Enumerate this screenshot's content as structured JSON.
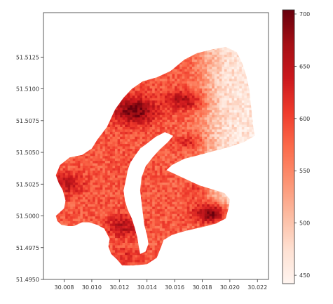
{
  "chart_data": {
    "type": "heatmap",
    "title": "",
    "xlabel": "",
    "ylabel": "",
    "xlim": [
      30.0065,
      30.0228
    ],
    "ylim": [
      51.495,
      51.516
    ],
    "x_ticks": [
      "30.008",
      "30.010",
      "30.012",
      "30.014",
      "30.016",
      "30.018",
      "30.020",
      "30.022"
    ],
    "y_ticks": [
      "51.5125",
      "51.5100",
      "51.5075",
      "51.5050",
      "51.5025",
      "51.5000",
      "51.4975",
      "51.4950"
    ],
    "colormap": "Reds",
    "color_low": "#fff5f0",
    "color_high": "#67000d",
    "colorbar": {
      "range": [
        442,
        704
      ],
      "ticks": [
        "700",
        "650",
        "600",
        "550",
        "500",
        "450"
      ]
    },
    "grid": false,
    "region_outline": [
      [
        30.0093,
        51.4995
      ],
      [
        30.0087,
        51.4992
      ],
      [
        30.0083,
        51.4992
      ],
      [
        30.0078,
        51.4993
      ],
      [
        30.0075,
        51.4996
      ],
      [
        30.0074,
        51.5
      ],
      [
        30.0077,
        51.5003
      ],
      [
        30.008,
        51.5006
      ],
      [
        30.0081,
        51.5012
      ],
      [
        30.0079,
        51.502
      ],
      [
        30.0076,
        51.5026
      ],
      [
        30.0074,
        51.5032
      ],
      [
        30.0077,
        51.504
      ],
      [
        30.0084,
        51.5046
      ],
      [
        30.0093,
        51.5048
      ],
      [
        30.01,
        51.5053
      ],
      [
        30.0104,
        51.506
      ],
      [
        30.0111,
        51.507
      ],
      [
        30.0117,
        51.5084
      ],
      [
        30.0123,
        51.5093
      ],
      [
        30.0129,
        51.51
      ],
      [
        30.0137,
        51.5106
      ],
      [
        30.0147,
        51.5109
      ],
      [
        30.0157,
        51.5114
      ],
      [
        30.0167,
        51.5123
      ],
      [
        30.0176,
        51.5128
      ],
      [
        30.0187,
        51.5131
      ],
      [
        30.0197,
        51.5133
      ],
      [
        30.0205,
        51.5129
      ],
      [
        30.0209,
        51.512
      ],
      [
        30.0212,
        51.511
      ],
      [
        30.0214,
        51.51
      ],
      [
        30.0215,
        51.509
      ],
      [
        30.0216,
        51.508
      ],
      [
        30.0217,
        51.507
      ],
      [
        30.0218,
        51.5063
      ],
      [
        30.021,
        51.5058
      ],
      [
        30.0199,
        51.5054
      ],
      [
        30.0188,
        51.5051
      ],
      [
        30.0178,
        51.5048
      ],
      [
        30.0167,
        51.5045
      ],
      [
        30.0158,
        51.504
      ],
      [
        30.0154,
        51.5036
      ],
      [
        30.016,
        51.5033
      ],
      [
        30.0166,
        51.503
      ],
      [
        30.0172,
        51.5027
      ],
      [
        30.0178,
        51.5024
      ],
      [
        30.0187,
        51.5021
      ],
      [
        30.0196,
        51.5018
      ],
      [
        30.02,
        51.5013
      ],
      [
        30.0199,
        51.5006
      ],
      [
        30.0197,
        51.4998
      ],
      [
        30.019,
        51.4994
      ],
      [
        30.0183,
        51.4992
      ],
      [
        30.0175,
        51.499
      ],
      [
        30.0167,
        51.4988
      ],
      [
        30.0158,
        51.4985
      ],
      [
        30.0152,
        51.4981
      ],
      [
        30.015,
        51.4975
      ],
      [
        30.0147,
        51.4967
      ],
      [
        30.014,
        51.4962
      ],
      [
        30.013,
        51.4961
      ],
      [
        30.0122,
        51.4961
      ],
      [
        30.0118,
        51.4966
      ],
      [
        30.0114,
        51.497
      ],
      [
        30.0112,
        51.4976
      ],
      [
        30.0113,
        51.4982
      ],
      [
        30.0109,
        51.499
      ],
      [
        30.0104,
        51.4993
      ],
      [
        30.0098,
        51.4995
      ]
    ],
    "river_outline": [
      [
        30.0153,
        51.5066
      ],
      [
        30.0146,
        51.5062
      ],
      [
        30.014,
        51.5057
      ],
      [
        30.0135,
        51.5053
      ],
      [
        30.0131,
        51.5047
      ],
      [
        30.0128,
        51.5042
      ],
      [
        30.0126,
        51.5036
      ],
      [
        30.0125,
        51.503
      ],
      [
        30.0124,
        51.5025
      ],
      [
        30.0123,
        51.502
      ],
      [
        30.0124,
        51.5012
      ],
      [
        30.0126,
        51.5005
      ],
      [
        30.0129,
        51.4998
      ],
      [
        30.0131,
        51.4991
      ],
      [
        30.0133,
        51.4983
      ],
      [
        30.0134,
        51.4976
      ],
      [
        30.0135,
        51.497
      ],
      [
        30.0139,
        51.4972
      ],
      [
        30.0141,
        51.4978
      ],
      [
        30.014,
        51.4985
      ],
      [
        30.0138,
        51.4993
      ],
      [
        30.0137,
        51.5002
      ],
      [
        30.0136,
        51.5011
      ],
      [
        30.0135,
        51.502
      ],
      [
        30.0136,
        51.503
      ],
      [
        30.0139,
        51.5039
      ],
      [
        30.0144,
        51.5046
      ],
      [
        30.0149,
        51.5052
      ],
      [
        30.0155,
        51.5058
      ],
      [
        30.0159,
        51.5063
      ]
    ],
    "hotspots": [
      {
        "x": 30.0131,
        "y": 51.5083,
        "sx": 0.0011,
        "sy": 0.00075,
        "value": 700
      },
      {
        "x": 30.0166,
        "y": 51.5091,
        "sx": 0.00095,
        "sy": 0.00055,
        "value": 660
      },
      {
        "x": 30.0083,
        "y": 51.5025,
        "sx": 0.0008,
        "sy": 0.0006,
        "value": 650
      },
      {
        "x": 30.0186,
        "y": 51.5002,
        "sx": 0.001,
        "sy": 0.00065,
        "value": 690
      },
      {
        "x": 30.0123,
        "y": 51.4992,
        "sx": 0.0008,
        "sy": 0.0006,
        "value": 655
      },
      {
        "x": 30.017,
        "y": 51.5058,
        "sx": 0.0007,
        "sy": 0.0004,
        "value": 620
      },
      {
        "x": 30.0128,
        "y": 51.5043,
        "sx": 0.0007,
        "sy": 0.0004,
        "value": 600
      },
      {
        "x": 30.0175,
        "y": 51.502,
        "sx": 0.0006,
        "sy": 0.0005,
        "value": 610
      },
      {
        "x": 30.0125,
        "y": 51.4968,
        "sx": 0.0006,
        "sy": 0.0005,
        "value": 620
      }
    ],
    "base_values": {
      "west": 585,
      "east": 462,
      "boundary_x": 30.0184
    }
  }
}
